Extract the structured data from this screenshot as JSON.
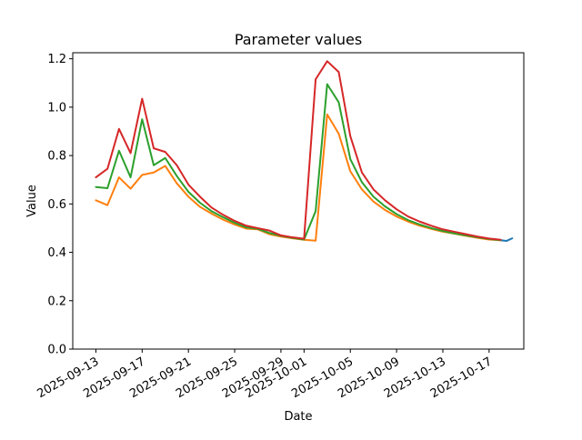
{
  "chart_data": {
    "type": "line",
    "title": "Parameter values",
    "xlabel": "Date",
    "ylabel": "Value",
    "ylim": [
      0.0,
      1.225
    ],
    "xlim": [
      "2025-09-11",
      "2025-10-20"
    ],
    "grid": false,
    "y_ticks": [
      0.0,
      0.2,
      0.4,
      0.6,
      0.8,
      1.0,
      1.2
    ],
    "y_tick_labels": [
      "0.0",
      "0.2",
      "0.4",
      "0.6",
      "0.8",
      "1.0",
      "1.2"
    ],
    "x_ticks": [
      "2025-09-13",
      "2025-09-17",
      "2025-09-21",
      "2025-09-25",
      "2025-09-29",
      "2025-10-01",
      "2025-10-05",
      "2025-10-09",
      "2025-10-13",
      "2025-10-17"
    ],
    "x_tick_labels": [
      "2025-09-13",
      "2025-09-17",
      "2025-09-21",
      "2025-09-25",
      "2025-09-29",
      "2025-10-01",
      "2025-10-05",
      "2025-10-09",
      "2025-10-13",
      "2025-10-17"
    ],
    "x": [
      "2025-09-13",
      "2025-09-14",
      "2025-09-15",
      "2025-09-16",
      "2025-09-17",
      "2025-09-18",
      "2025-09-19",
      "2025-09-20",
      "2025-09-21",
      "2025-09-22",
      "2025-09-23",
      "2025-09-24",
      "2025-09-25",
      "2025-09-26",
      "2025-09-27",
      "2025-09-28",
      "2025-09-29",
      "2025-09-30",
      "2025-10-01",
      "2025-10-02",
      "2025-10-03",
      "2025-10-04",
      "2025-10-05",
      "2025-10-06",
      "2025-10-07",
      "2025-10-08",
      "2025-10-09",
      "2025-10-10",
      "2025-10-11",
      "2025-10-12",
      "2025-10-13",
      "2025-10-14",
      "2025-10-15",
      "2025-10-16",
      "2025-10-17",
      "2025-10-18"
    ],
    "series": [
      {
        "color": "#1f77b4",
        "x": [
          "2025-10-18",
          "2025-10-18T12:00",
          "2025-10-19"
        ],
        "values": [
          0.45,
          0.447,
          0.458
        ]
      },
      {
        "color": "#ff7f0e",
        "values": [
          0.615,
          0.595,
          0.71,
          0.663,
          0.72,
          0.73,
          0.757,
          0.685,
          0.63,
          0.588,
          0.56,
          0.535,
          0.515,
          0.498,
          0.495,
          0.475,
          0.465,
          0.458,
          0.452,
          0.448,
          0.97,
          0.89,
          0.735,
          0.66,
          0.61,
          0.575,
          0.548,
          0.527,
          0.51,
          0.497,
          0.485,
          0.477,
          0.468,
          0.46,
          0.453,
          0.45
        ]
      },
      {
        "color": "#2ca02c",
        "values": [
          0.67,
          0.665,
          0.82,
          0.71,
          0.95,
          0.76,
          0.79,
          0.715,
          0.65,
          0.605,
          0.57,
          0.545,
          0.522,
          0.503,
          0.497,
          0.48,
          0.468,
          0.46,
          0.453,
          0.57,
          1.095,
          1.02,
          0.785,
          0.69,
          0.63,
          0.59,
          0.558,
          0.533,
          0.515,
          0.5,
          0.488,
          0.478,
          0.47,
          0.462,
          0.455,
          0.45
        ]
      },
      {
        "color": "#d62728",
        "values": [
          0.71,
          0.745,
          0.91,
          0.81,
          1.035,
          0.83,
          0.815,
          0.76,
          0.68,
          0.63,
          0.585,
          0.555,
          0.53,
          0.51,
          0.5,
          0.49,
          0.47,
          0.462,
          0.456,
          1.115,
          1.19,
          1.145,
          0.88,
          0.73,
          0.66,
          0.615,
          0.578,
          0.548,
          0.527,
          0.51,
          0.495,
          0.485,
          0.475,
          0.465,
          0.457,
          0.452
        ]
      }
    ]
  }
}
